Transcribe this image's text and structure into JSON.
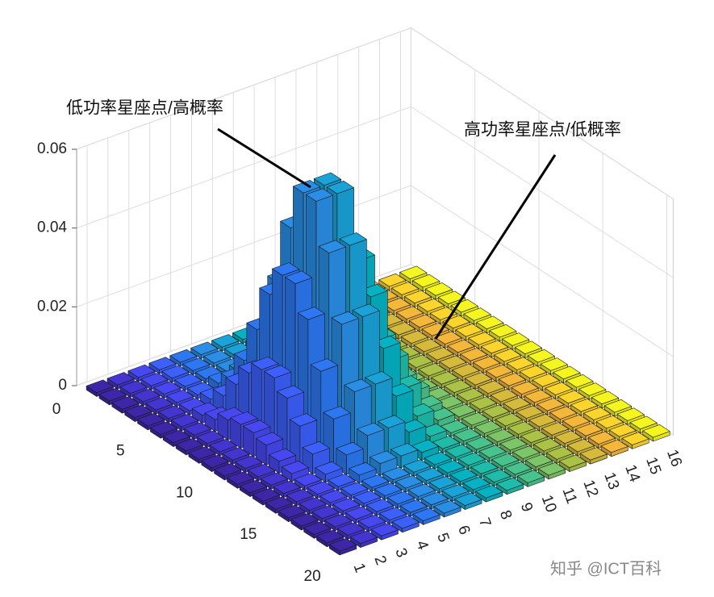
{
  "chart_data": {
    "type": "bar3",
    "annotations": [
      "低功率星座点/高概率",
      "高功率星座点/低概率"
    ],
    "watermark": "知乎 @ICT百科",
    "x": [
      1,
      2,
      3,
      4,
      5,
      6,
      7,
      8,
      9,
      10,
      11,
      12,
      13,
      14,
      15,
      16,
      17,
      18,
      19,
      20
    ],
    "xlim": [
      0,
      20.5
    ],
    "xticks": [
      0,
      5,
      10,
      15,
      20
    ],
    "categories": [
      1,
      2,
      3,
      4,
      5,
      6,
      7,
      8,
      9,
      10,
      11,
      12,
      13,
      14,
      15,
      16
    ],
    "zlim": [
      0,
      0.06
    ],
    "zticks": [
      0,
      0.02,
      0.04,
      0.06
    ],
    "grid": true,
    "colors": [
      "#3e26a8",
      "#4435d0",
      "#4748f1",
      "#3c60fb",
      "#2d78f2",
      "#2a8ee6",
      "#1aa3d9",
      "#05b2c4",
      "#20bcaa",
      "#49c38d",
      "#7cc568",
      "#acc246",
      "#d5ba3c",
      "#f3b73a",
      "#fbd42c",
      "#f5f520"
    ],
    "z": [
      [
        0.001,
        0.001,
        0.001,
        0.001,
        0.001,
        0.001,
        0.001,
        0.001,
        0.001,
        0.001,
        0.001,
        0.001,
        0.001,
        0.001,
        0.001,
        0.001
      ],
      [
        0.001,
        0.001,
        0.001,
        0.001,
        0.001,
        0.001,
        0.001,
        0.001,
        0.001,
        0.001,
        0.001,
        0.001,
        0.001,
        0.001,
        0.001,
        0.001
      ],
      [
        0.001,
        0.001,
        0.001,
        0.001,
        0.001,
        0.001,
        0.001,
        0.001,
        0.001,
        0.001,
        0.001,
        0.001,
        0.001,
        0.001,
        0.001,
        0.001
      ],
      [
        0.001,
        0.001,
        0.001,
        0.001,
        0.002,
        0.003,
        0.003,
        0.002,
        0.001,
        0.001,
        0.001,
        0.001,
        0.001,
        0.001,
        0.001,
        0.001
      ],
      [
        0.001,
        0.001,
        0.001,
        0.002,
        0.005,
        0.008,
        0.008,
        0.005,
        0.002,
        0.001,
        0.001,
        0.001,
        0.001,
        0.001,
        0.001,
        0.001
      ],
      [
        0.001,
        0.001,
        0.002,
        0.005,
        0.012,
        0.017,
        0.017,
        0.012,
        0.005,
        0.002,
        0.001,
        0.001,
        0.001,
        0.001,
        0.001,
        0.001
      ],
      [
        0.001,
        0.001,
        0.003,
        0.01,
        0.022,
        0.032,
        0.032,
        0.022,
        0.01,
        0.003,
        0.001,
        0.001,
        0.001,
        0.001,
        0.001,
        0.001
      ],
      [
        0.001,
        0.001,
        0.005,
        0.015,
        0.033,
        0.048,
        0.048,
        0.033,
        0.015,
        0.005,
        0.001,
        0.001,
        0.001,
        0.001,
        0.001,
        0.001
      ],
      [
        0.001,
        0.001,
        0.006,
        0.018,
        0.04,
        0.059,
        0.059,
        0.04,
        0.018,
        0.006,
        0.001,
        0.001,
        0.001,
        0.001,
        0.001,
        0.001
      ],
      [
        0.001,
        0.001,
        0.006,
        0.018,
        0.04,
        0.059,
        0.059,
        0.04,
        0.018,
        0.006,
        0.001,
        0.001,
        0.001,
        0.001,
        0.001,
        0.001
      ],
      [
        0.001,
        0.001,
        0.005,
        0.015,
        0.033,
        0.048,
        0.048,
        0.033,
        0.015,
        0.005,
        0.001,
        0.001,
        0.001,
        0.001,
        0.001,
        0.001
      ],
      [
        0.001,
        0.001,
        0.003,
        0.01,
        0.022,
        0.032,
        0.032,
        0.022,
        0.01,
        0.003,
        0.001,
        0.001,
        0.001,
        0.001,
        0.001,
        0.001
      ],
      [
        0.001,
        0.001,
        0.002,
        0.005,
        0.012,
        0.017,
        0.017,
        0.012,
        0.005,
        0.002,
        0.001,
        0.001,
        0.001,
        0.001,
        0.001,
        0.001
      ],
      [
        0.001,
        0.001,
        0.001,
        0.002,
        0.005,
        0.008,
        0.008,
        0.005,
        0.002,
        0.001,
        0.001,
        0.001,
        0.001,
        0.001,
        0.001,
        0.001
      ],
      [
        0.001,
        0.001,
        0.001,
        0.001,
        0.002,
        0.003,
        0.003,
        0.002,
        0.001,
        0.001,
        0.001,
        0.001,
        0.001,
        0.001,
        0.001,
        0.001
      ],
      [
        0.001,
        0.001,
        0.001,
        0.001,
        0.001,
        0.001,
        0.001,
        0.001,
        0.001,
        0.001,
        0.001,
        0.001,
        0.001,
        0.001,
        0.001,
        0.001
      ],
      [
        0.001,
        0.001,
        0.001,
        0.001,
        0.001,
        0.001,
        0.001,
        0.001,
        0.001,
        0.001,
        0.001,
        0.001,
        0.001,
        0.001,
        0.001,
        0.001
      ],
      [
        0.001,
        0.001,
        0.001,
        0.001,
        0.001,
        0.001,
        0.001,
        0.001,
        0.001,
        0.001,
        0.001,
        0.001,
        0.001,
        0.001,
        0.001,
        0.001
      ],
      [
        0.001,
        0.001,
        0.001,
        0.001,
        0.001,
        0.001,
        0.001,
        0.001,
        0.001,
        0.001,
        0.001,
        0.001,
        0.001,
        0.001,
        0.001,
        0.001
      ],
      [
        0.001,
        0.001,
        0.001,
        0.001,
        0.001,
        0.001,
        0.001,
        0.001,
        0.001,
        0.001,
        0.001,
        0.001,
        0.001,
        0.001,
        0.001,
        0.001
      ]
    ]
  }
}
